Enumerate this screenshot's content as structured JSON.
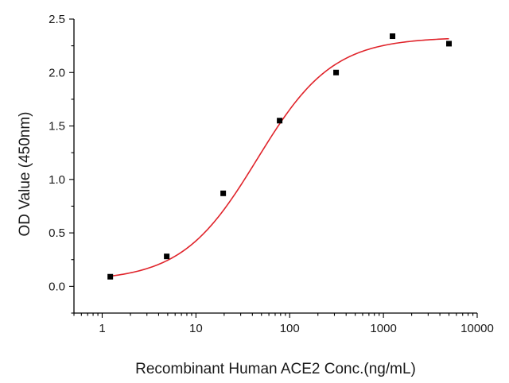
{
  "chart_data": {
    "type": "scatter",
    "title": "",
    "xlabel": "Recombinant Human ACE2 Conc.(ng/mL)",
    "ylabel": "OD Value (450nm)",
    "x_scale": "log",
    "xlim": [
      0.5,
      10000
    ],
    "ylim": [
      -0.25,
      2.5
    ],
    "x_ticks": [
      1,
      10,
      100,
      1000,
      10000
    ],
    "x_tick_labels": [
      "1",
      "10",
      "100",
      "1000",
      "10000"
    ],
    "y_ticks": [
      0.0,
      0.5,
      1.0,
      1.5,
      2.0,
      2.5
    ],
    "y_tick_labels": [
      "0.0",
      "0.5",
      "1.0",
      "1.5",
      "2.0",
      "2.5"
    ],
    "grid": false,
    "legend": "none",
    "series": [
      {
        "x": [
          1.22,
          4.88,
          19.53,
          78.13,
          312.5,
          1250,
          5000
        ],
        "y": [
          0.09,
          0.28,
          0.87,
          1.55,
          2.0,
          2.34,
          2.27
        ],
        "marker": "square",
        "color": "#000000"
      }
    ],
    "fit_curve": {
      "model": "4PL",
      "bottom": 0.05,
      "top": 2.33,
      "ec50": 45,
      "hill": 1.08,
      "color": "#e0242b"
    }
  }
}
